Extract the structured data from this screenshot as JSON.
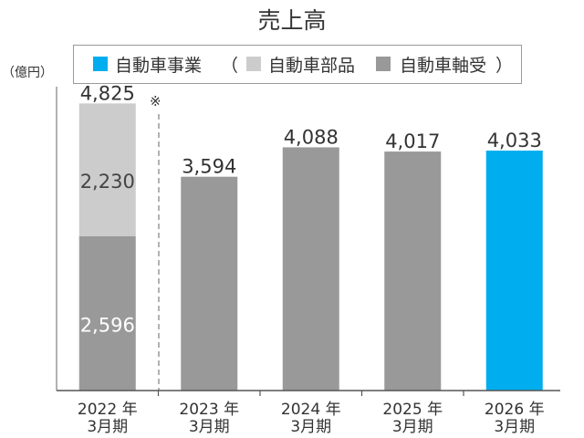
{
  "chart_data": {
    "type": "bar",
    "stacked": true,
    "title": "売上高",
    "ylabel": "（億円）",
    "ylim": [
      0,
      5000
    ],
    "grid": false,
    "note_mark": "※",
    "legend": {
      "position": "top",
      "group_open": "（",
      "group_close": "）"
    },
    "categories": [
      [
        "2022 年",
        "3月期"
      ],
      [
        "2023 年",
        "3月期"
      ],
      [
        "2024 年",
        "3月期"
      ],
      [
        "2025 年",
        "3月期"
      ],
      [
        "2026 年",
        "3月期"
      ]
    ],
    "series": [
      {
        "name": "自動車事業",
        "color": "#00AEEF",
        "values": [
          null,
          null,
          null,
          null,
          4033
        ]
      },
      {
        "name": "自動車部品",
        "color": "#CCCCCC",
        "values": [
          2230,
          null,
          null,
          null,
          null
        ]
      },
      {
        "name": "自動車軸受",
        "color": "#999999",
        "values": [
          2596,
          3594,
          4088,
          4017,
          null
        ]
      }
    ],
    "totals": [
      4825,
      3594,
      4088,
      4017,
      4033
    ]
  }
}
